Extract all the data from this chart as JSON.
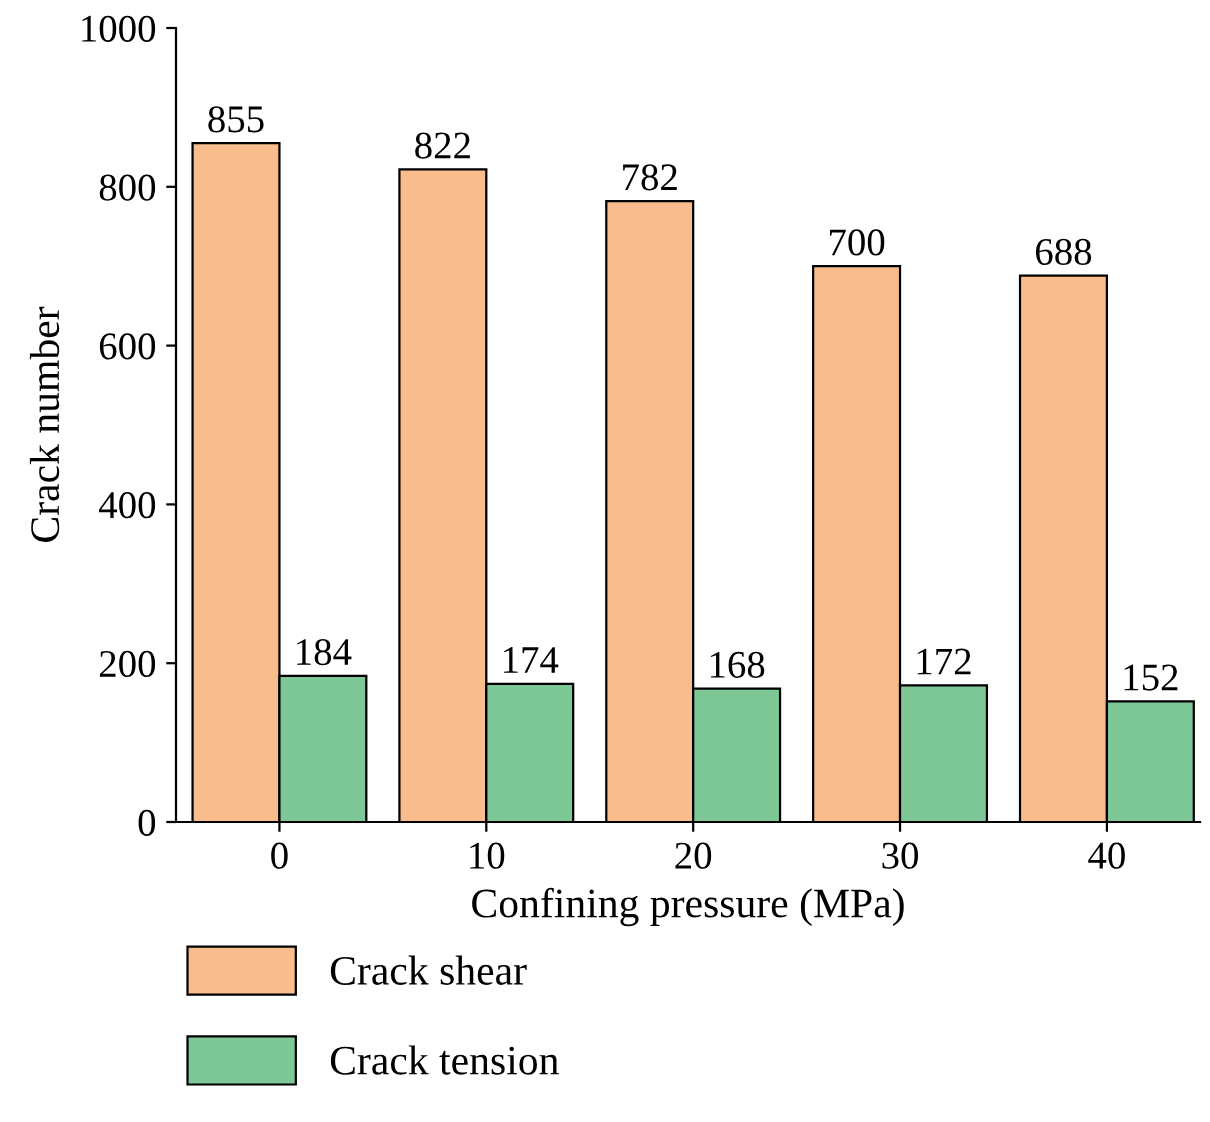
{
  "chart_data": {
    "type": "bar",
    "xlabel": "Confining pressure (MPa)",
    "ylabel": "Crack number",
    "categories": [
      "0",
      "10",
      "20",
      "30",
      "40"
    ],
    "series": [
      {
        "name": "Crack shear",
        "color": "#f9bc8d",
        "values": [
          855,
          822,
          782,
          700,
          688
        ]
      },
      {
        "name": "Crack tension",
        "color": "#7dc896",
        "values": [
          184,
          174,
          168,
          172,
          152
        ]
      }
    ],
    "ylim": [
      0,
      1000
    ],
    "yticks": [
      0,
      200,
      400,
      600,
      800,
      1000
    ],
    "data_labels": true,
    "legend": "bottom left",
    "grid": false
  }
}
